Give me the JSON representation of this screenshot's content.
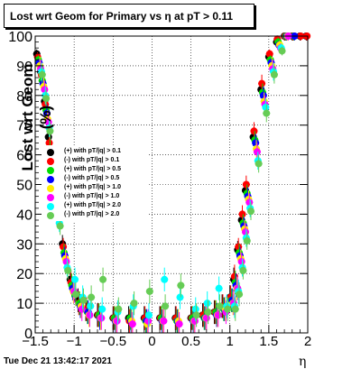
{
  "chart_data": {
    "type": "scatter",
    "title": "Lost wrt Geom for Primary vs  η at pT > 0.11",
    "xlabel": "η",
    "ylabel": "Lost wrt Geom (%)",
    "xlim": [
      -1.5,
      2.0
    ],
    "ylim": [
      0,
      100
    ],
    "x_ticks": [
      "−1.5",
      "−1",
      "−0.5",
      "0",
      "0.5",
      "1",
      "1.5",
      "2"
    ],
    "x_tick_values": [
      -1.5,
      -1.0,
      -0.5,
      0.0,
      0.5,
      1.0,
      1.5,
      2.0
    ],
    "y_ticks": [
      "0",
      "10",
      "20",
      "30",
      "40",
      "50",
      "60",
      "70",
      "80",
      "90",
      "100"
    ],
    "y_tick_values": [
      0,
      10,
      20,
      30,
      40,
      50,
      60,
      70,
      80,
      90,
      100
    ],
    "legend_position": "left-middle",
    "series": [
      {
        "name": "(+) with pT/|q| > 0.1",
        "color": "#000000",
        "x": [
          -1.48,
          -1.43,
          -1.38,
          -1.33,
          -1.25,
          -1.15,
          -1.05,
          -0.95,
          -0.85,
          -0.7,
          -0.5,
          -0.3,
          -0.1,
          0.1,
          0.3,
          0.5,
          0.65,
          0.8,
          0.9,
          1.0,
          1.05,
          1.1,
          1.15,
          1.2,
          1.3,
          1.4,
          1.5,
          1.6,
          1.7,
          1.8,
          1.9,
          1.98
        ],
        "y": [
          94,
          88,
          78,
          66,
          48,
          30,
          18,
          11,
          8,
          6,
          5,
          5,
          5,
          5,
          5,
          5,
          6,
          7,
          9,
          12,
          18,
          28,
          38,
          48,
          66,
          82,
          93,
          98,
          100,
          100,
          100,
          100
        ]
      },
      {
        "name": "(-) with pT/|q| > 0.1",
        "color": "#ff0000",
        "x": [
          -1.47,
          -1.42,
          -1.37,
          -1.32,
          -1.24,
          -1.14,
          -1.04,
          -0.94,
          -0.84,
          -0.69,
          -0.49,
          -0.29,
          -0.09,
          0.11,
          0.31,
          0.51,
          0.66,
          0.81,
          0.91,
          1.01,
          1.06,
          1.11,
          1.16,
          1.21,
          1.31,
          1.41,
          1.51,
          1.61,
          1.71,
          1.81,
          1.91,
          1.99
        ],
        "y": [
          93,
          87,
          77,
          64,
          46,
          29,
          17,
          10,
          8,
          6,
          5,
          4,
          5,
          5,
          5,
          5,
          6,
          7,
          9,
          12,
          19,
          29,
          40,
          50,
          68,
          84,
          94,
          99,
          100,
          100,
          100,
          100
        ]
      },
      {
        "name": "(+) with pT/|q| > 0.5",
        "color": "#00dd00",
        "x": [
          -1.46,
          -1.41,
          -1.36,
          -1.31,
          -1.23,
          -1.13,
          -1.03,
          -0.93,
          -0.83,
          -0.68,
          -0.48,
          -0.28,
          -0.08,
          0.12,
          0.32,
          0.52,
          0.67,
          0.82,
          0.92,
          1.02,
          1.07,
          1.12,
          1.17,
          1.22,
          1.32,
          1.42,
          1.52,
          1.62,
          1.72,
          1.82
        ],
        "y": [
          92,
          85,
          75,
          62,
          44,
          27,
          16,
          10,
          7,
          6,
          5,
          5,
          4,
          5,
          4,
          5,
          5,
          7,
          8,
          11,
          17,
          27,
          37,
          47,
          65,
          81,
          92,
          98,
          100,
          100
        ]
      },
      {
        "name": "(-) with pT/|q| > 0.5",
        "color": "#0000ff",
        "x": [
          -1.45,
          -1.4,
          -1.35,
          -1.3,
          -1.22,
          -1.12,
          -1.02,
          -0.92,
          -0.82,
          -0.67,
          -0.47,
          -0.27,
          -0.07,
          0.13,
          0.33,
          0.53,
          0.68,
          0.83,
          0.93,
          1.03,
          1.08,
          1.13,
          1.18,
          1.23,
          1.33,
          1.43,
          1.53,
          1.63,
          1.73,
          1.83
        ],
        "y": [
          91,
          84,
          74,
          60,
          42,
          26,
          15,
          9,
          7,
          5,
          4,
          4,
          4,
          4,
          4,
          4,
          5,
          6,
          8,
          11,
          16,
          26,
          36,
          46,
          64,
          80,
          91,
          97,
          100,
          100
        ]
      },
      {
        "name": "(+) with pT/|q| > 1.0",
        "color": "#ffee00",
        "x": [
          -1.44,
          -1.39,
          -1.34,
          -1.29,
          -1.21,
          -1.11,
          -1.01,
          -0.91,
          -0.81,
          -0.66,
          -0.46,
          -0.26,
          -0.06,
          0.14,
          0.34,
          0.54,
          0.69,
          0.84,
          0.94,
          1.04,
          1.09,
          1.14,
          1.19,
          1.24,
          1.34,
          1.44,
          1.54,
          1.64,
          1.74
        ],
        "y": [
          90,
          83,
          72,
          58,
          40,
          25,
          14,
          9,
          6,
          5,
          4,
          4,
          3,
          4,
          4,
          4,
          5,
          6,
          8,
          10,
          15,
          25,
          35,
          45,
          62,
          78,
          90,
          97,
          100
        ]
      },
      {
        "name": "(-) with pT/|q| > 1.0",
        "color": "#ff00ff",
        "x": [
          -1.43,
          -1.38,
          -1.33,
          -1.28,
          -1.2,
          -1.1,
          -1.0,
          -0.9,
          -0.8,
          -0.65,
          -0.45,
          -0.25,
          -0.05,
          0.15,
          0.35,
          0.55,
          0.7,
          0.85,
          0.95,
          1.05,
          1.1,
          1.15,
          1.2,
          1.25,
          1.35,
          1.45,
          1.55,
          1.65,
          1.75
        ],
        "y": [
          89,
          82,
          71,
          57,
          39,
          24,
          14,
          8,
          6,
          5,
          4,
          3,
          4,
          4,
          3,
          4,
          5,
          6,
          7,
          10,
          15,
          24,
          34,
          44,
          61,
          77,
          89,
          96,
          100
        ]
      },
      {
        "name": "(+) with pT/|q| > 2.0",
        "color": "#00ffff",
        "x": [
          -1.42,
          -1.37,
          -1.32,
          -1.27,
          -1.19,
          -1.09,
          -0.99,
          -0.89,
          -0.79,
          -0.64,
          -0.44,
          -0.24,
          -0.04,
          0.16,
          0.36,
          0.56,
          0.71,
          0.86,
          0.96,
          1.06,
          1.11,
          1.16,
          1.21,
          1.26,
          1.36,
          1.46,
          1.56,
          1.66
        ],
        "y": [
          88,
          80,
          69,
          55,
          37,
          22,
          18,
          12,
          9,
          8,
          7,
          9,
          6,
          18,
          12,
          8,
          10,
          15,
          9,
          9,
          14,
          22,
          32,
          42,
          58,
          76,
          88,
          96
        ]
      },
      {
        "name": "(-) with pT/|q| > 2.0",
        "color": "#66cc55",
        "x": [
          -1.41,
          -1.36,
          -1.31,
          -1.26,
          -1.18,
          -1.08,
          -0.98,
          -0.88,
          -0.78,
          -0.63,
          -0.43,
          -0.23,
          -0.03,
          0.17,
          0.37,
          0.57,
          0.72,
          0.87,
          0.97,
          1.07,
          1.12,
          1.17,
          1.22,
          1.27,
          1.37,
          1.47,
          1.57,
          1.67
        ],
        "y": [
          87,
          79,
          68,
          54,
          36,
          21,
          13,
          11,
          12,
          18,
          8,
          10,
          14,
          9,
          16,
          6,
          7,
          9,
          8,
          8,
          13,
          21,
          31,
          41,
          57,
          74,
          87,
          95
        ]
      }
    ],
    "legend_labels": [
      "(+) with pT/|q| > 0.1",
      "(-) with pT/|q| > 0.1",
      "(+) with pT/|q| > 0.5",
      "(-) with pT/|q| > 0.5",
      "(+) with pT/|q| > 1.0",
      "(-) with pT/|q| > 1.0",
      "(+) with pT/|q| > 2.0",
      "(-) with pT/|q| > 2.0"
    ]
  },
  "footer": {
    "timestamp": "Tue Dec 21 13:42:17 2021"
  }
}
